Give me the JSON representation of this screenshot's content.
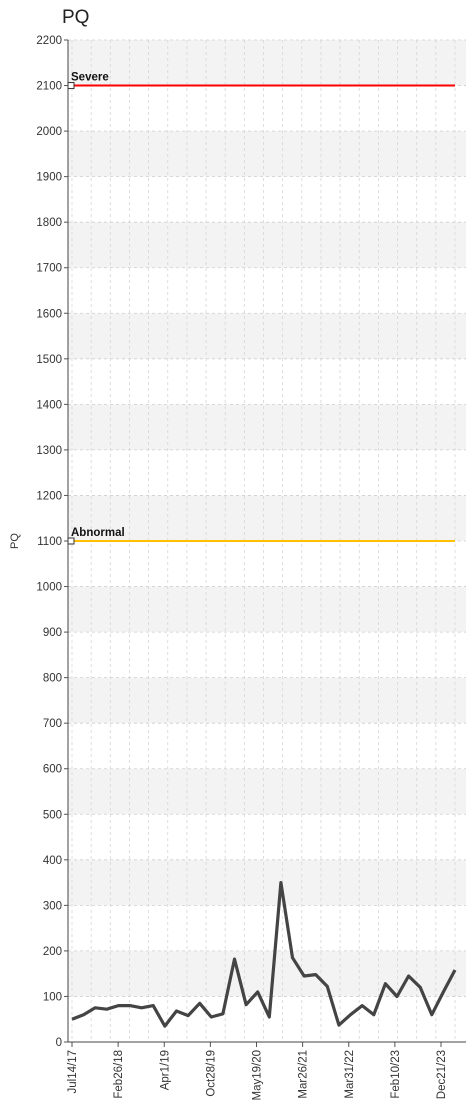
{
  "title": "PQ",
  "chart_data": {
    "type": "line",
    "title": "PQ",
    "ylabel": "PQ",
    "ylim": [
      0,
      2200
    ],
    "yticks": [
      0,
      100,
      200,
      300,
      400,
      500,
      600,
      700,
      800,
      900,
      1000,
      1100,
      1200,
      1300,
      1400,
      1500,
      1600,
      1700,
      1800,
      1900,
      2000,
      2100,
      2200
    ],
    "xtick_labels": [
      "Jul14/17",
      "Feb26/18",
      "Apr1/19",
      "Oct28/19",
      "May19/20",
      "Mar26/21",
      "Mar31/22",
      "Feb10/23",
      "Dec21/23"
    ],
    "grid": true,
    "reference_lines": [
      {
        "name": "Severe",
        "value": 2100,
        "color": "#ff0000"
      },
      {
        "name": "Abnormal",
        "value": 1100,
        "color": "#ffc000"
      }
    ],
    "series": [
      {
        "color": "#444444",
        "values": [
          50,
          60,
          75,
          72,
          80,
          80,
          75,
          80,
          35,
          68,
          58,
          85,
          55,
          62,
          182,
          82,
          110,
          55,
          350,
          185,
          145,
          148,
          122,
          37,
          60,
          80,
          60,
          128,
          100,
          145,
          120,
          60,
          110,
          158
        ]
      }
    ]
  }
}
